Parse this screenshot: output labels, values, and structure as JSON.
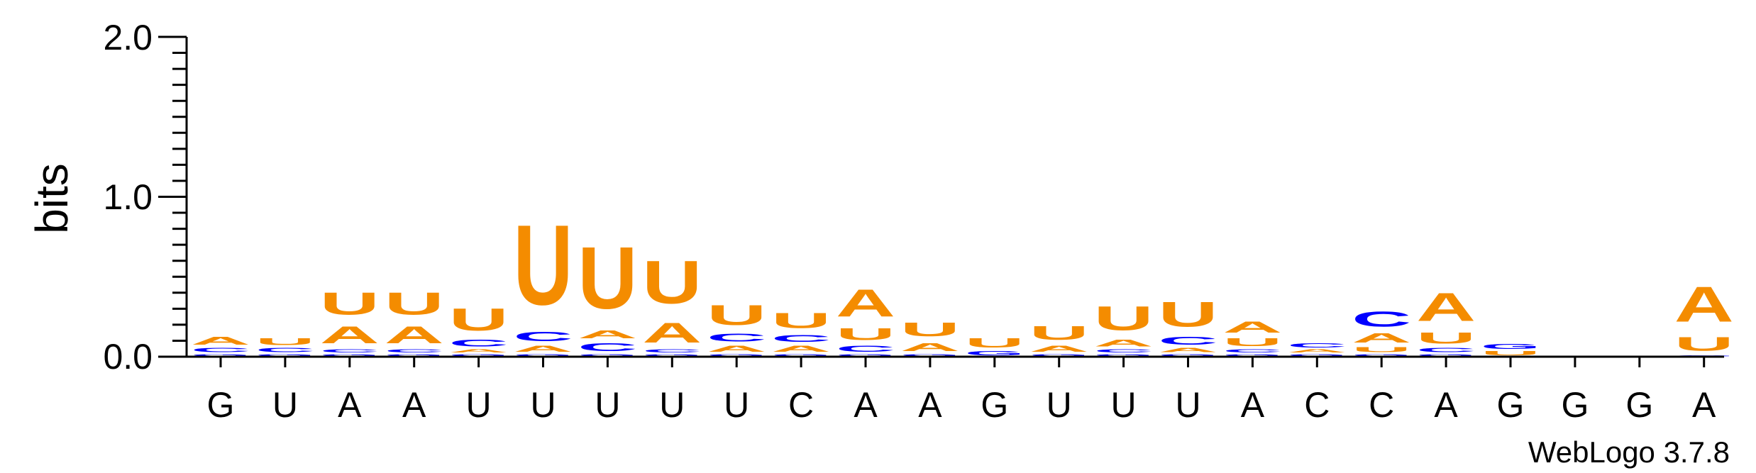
{
  "chart_data": {
    "type": "sequence-logo",
    "ylabel": "bits",
    "ylim": [
      0,
      2.0
    ],
    "yticks": [
      "0.0",
      "1.0",
      "2.0"
    ],
    "xticklabels": [
      "G",
      "U",
      "A",
      "A",
      "U",
      "U",
      "U",
      "U",
      "U",
      "C",
      "A",
      "A",
      "G",
      "U",
      "U",
      "U",
      "A",
      "C",
      "C",
      "A",
      "G",
      "G",
      "G",
      "A"
    ],
    "credit": "WebLogo 3.7.8",
    "colors": {
      "A": "#f48c00",
      "U": "#f48c00",
      "C": "#0000ff",
      "G": "#0000ff"
    },
    "stacks": [
      [
        {
          "l": "G",
          "h": 0.02
        },
        {
          "l": "C",
          "h": 0.04
        },
        {
          "l": "A",
          "h": 0.08
        }
      ],
      [
        {
          "l": "G",
          "h": 0.02
        },
        {
          "l": "C",
          "h": 0.04
        },
        {
          "l": "U",
          "h": 0.07
        }
      ],
      [
        {
          "l": "G",
          "h": 0.02
        },
        {
          "l": "C",
          "h": 0.03
        },
        {
          "l": "A",
          "h": 0.17
        },
        {
          "l": "U",
          "h": 0.22
        }
      ],
      [
        {
          "l": "G",
          "h": 0.02
        },
        {
          "l": "C",
          "h": 0.03
        },
        {
          "l": "A",
          "h": 0.17
        },
        {
          "l": "U",
          "h": 0.22
        }
      ],
      [
        {
          "l": "G",
          "h": 0.02
        },
        {
          "l": "A",
          "h": 0.03
        },
        {
          "l": "C",
          "h": 0.07
        },
        {
          "l": "U",
          "h": 0.22
        }
      ],
      [
        {
          "l": "G",
          "h": 0.02
        },
        {
          "l": "A",
          "h": 0.06
        },
        {
          "l": "C",
          "h": 0.09
        },
        {
          "l": "U",
          "h": 0.8
        }
      ],
      [
        {
          "l": "G",
          "h": 0.02
        },
        {
          "l": "C",
          "h": 0.08
        },
        {
          "l": "A",
          "h": 0.08
        },
        {
          "l": "U",
          "h": 0.62
        }
      ],
      [
        {
          "l": "G",
          "h": 0.02
        },
        {
          "l": "C",
          "h": 0.03
        },
        {
          "l": "A",
          "h": 0.2
        },
        {
          "l": "U",
          "h": 0.43
        }
      ],
      [
        {
          "l": "G",
          "h": 0.02
        },
        {
          "l": "A",
          "h": 0.06
        },
        {
          "l": "C",
          "h": 0.08
        },
        {
          "l": "U",
          "h": 0.2
        }
      ],
      [
        {
          "l": "G",
          "h": 0.02
        },
        {
          "l": "A",
          "h": 0.06
        },
        {
          "l": "C",
          "h": 0.07
        },
        {
          "l": "U",
          "h": 0.15
        }
      ],
      [
        {
          "l": "G",
          "h": 0.02
        },
        {
          "l": "C",
          "h": 0.06
        },
        {
          "l": "U",
          "h": 0.12
        },
        {
          "l": "A",
          "h": 0.27
        }
      ],
      [
        {
          "l": "G",
          "h": 0.02
        },
        {
          "l": "A",
          "h": 0.08
        },
        {
          "l": "U",
          "h": 0.14
        }
      ],
      [
        {
          "l": "G",
          "h": 0.04
        },
        {
          "l": "U",
          "h": 0.09
        }
      ],
      [
        {
          "l": "G",
          "h": 0.02
        },
        {
          "l": "A",
          "h": 0.06
        },
        {
          "l": "U",
          "h": 0.14
        }
      ],
      [
        {
          "l": "G",
          "h": 0.02
        },
        {
          "l": "C",
          "h": 0.03
        },
        {
          "l": "A",
          "h": 0.07
        },
        {
          "l": "U",
          "h": 0.24
        }
      ],
      [
        {
          "l": "G",
          "h": 0.02
        },
        {
          "l": "A",
          "h": 0.04
        },
        {
          "l": "C",
          "h": 0.08
        },
        {
          "l": "U",
          "h": 0.25
        }
      ],
      [
        {
          "l": "G",
          "h": 0.02
        },
        {
          "l": "C",
          "h": 0.03
        },
        {
          "l": "U",
          "h": 0.08
        },
        {
          "l": "A",
          "h": 0.11
        }
      ],
      [
        {
          "l": "G",
          "h": 0.02
        },
        {
          "l": "A",
          "h": 0.03
        },
        {
          "l": "C",
          "h": 0.04
        }
      ],
      [
        {
          "l": "G",
          "h": 0.02
        },
        {
          "l": "U",
          "h": 0.05
        },
        {
          "l": "A",
          "h": 0.09
        },
        {
          "l": "C",
          "h": 0.15
        }
      ],
      [
        {
          "l": "G",
          "h": 0.02
        },
        {
          "l": "C",
          "h": 0.04
        },
        {
          "l": "U",
          "h": 0.11
        },
        {
          "l": "A",
          "h": 0.28
        }
      ],
      [
        {
          "l": "U",
          "h": 0.04
        },
        {
          "l": "G",
          "h": 0.05
        }
      ],
      [],
      [],
      [
        {
          "l": "G",
          "h": 0.01
        },
        {
          "l": "U",
          "h": 0.14
        },
        {
          "l": "A",
          "h": 0.35
        }
      ]
    ]
  }
}
